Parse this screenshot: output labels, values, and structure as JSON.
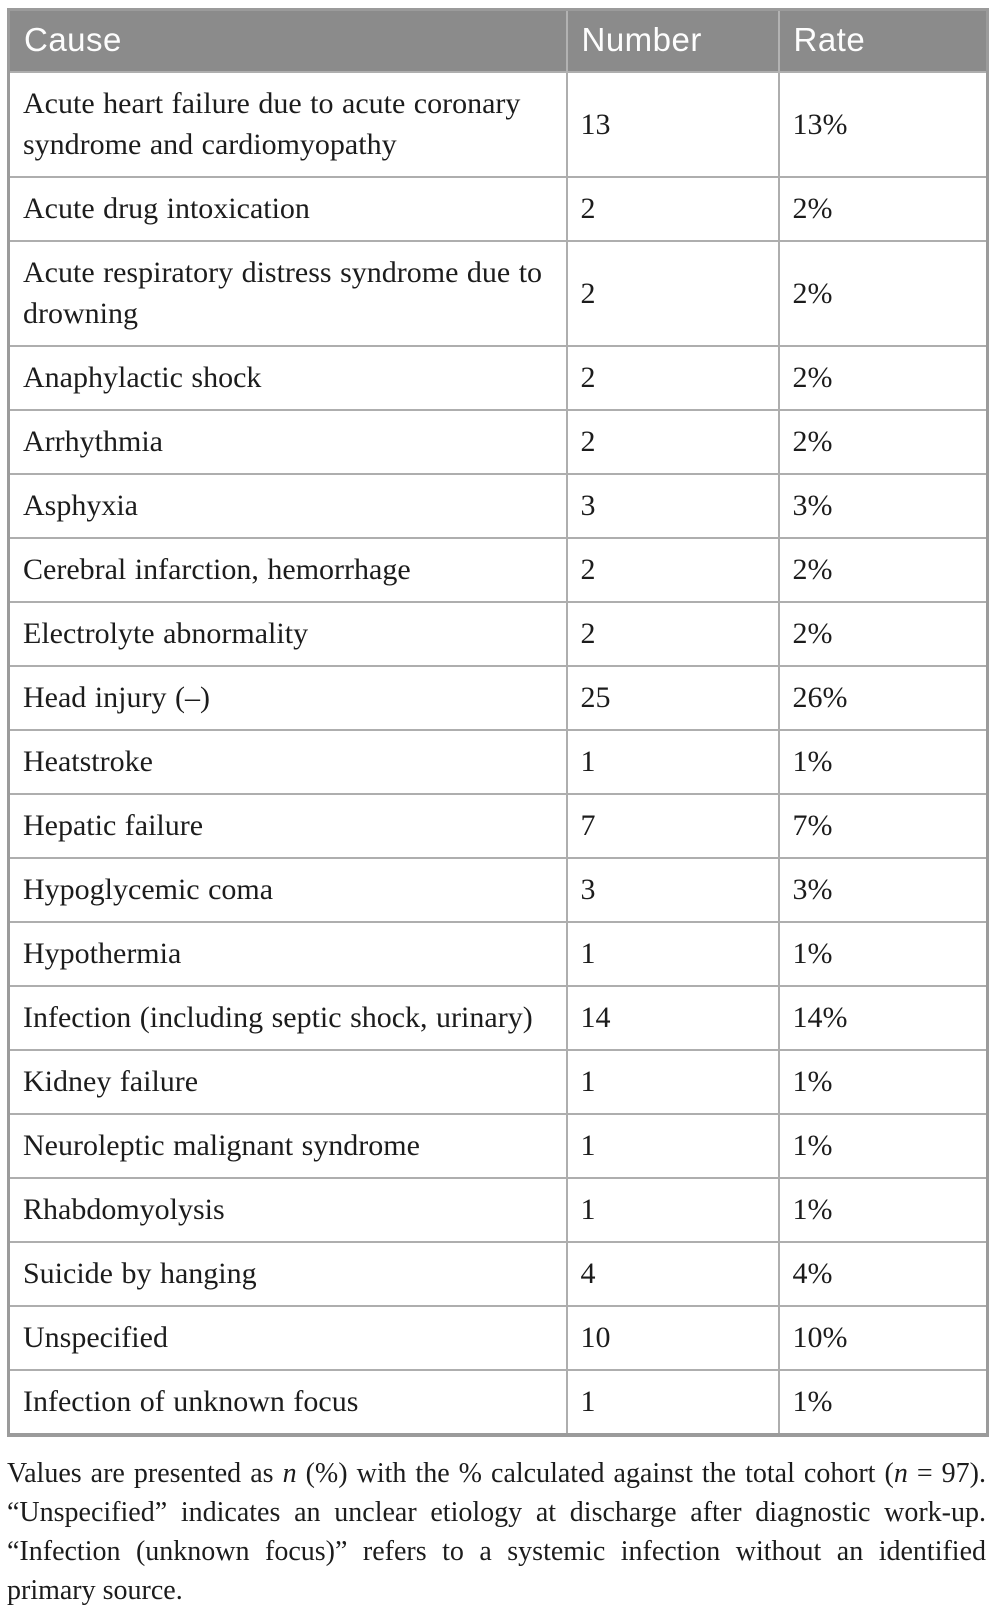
{
  "table": {
    "columns": [
      "Cause",
      "Number",
      "Rate"
    ],
    "rows": [
      {
        "cause": "Acute heart failure due to acute coronary syndrome and cardiomyopathy",
        "number": "13",
        "rate": "13%"
      },
      {
        "cause": "Acute drug intoxication",
        "number": "2",
        "rate": "2%"
      },
      {
        "cause": "Acute respiratory distress syndrome due to drowning",
        "number": "2",
        "rate": "2%"
      },
      {
        "cause": "Anaphylactic shock",
        "number": "2",
        "rate": "2%"
      },
      {
        "cause": "Arrhythmia",
        "number": "2",
        "rate": "2%"
      },
      {
        "cause": "Asphyxia",
        "number": "3",
        "rate": "3%"
      },
      {
        "cause": "Cerebral infarction, hemorrhage",
        "number": "2",
        "rate": "2%"
      },
      {
        "cause": "Electrolyte abnormality",
        "number": "2",
        "rate": "2%"
      },
      {
        "cause": "Head injury (–)",
        "number": "25",
        "rate": "26%"
      },
      {
        "cause": "Heatstroke",
        "number": "1",
        "rate": "1%"
      },
      {
        "cause": "Hepatic failure",
        "number": "7",
        "rate": "7%"
      },
      {
        "cause": "Hypoglycemic coma",
        "number": "3",
        "rate": "3%"
      },
      {
        "cause": "Hypothermia",
        "number": "1",
        "rate": "1%"
      },
      {
        "cause": "Infection (including septic shock, urinary)",
        "number": "14",
        "rate": "14%"
      },
      {
        "cause": "Kidney failure",
        "number": "1",
        "rate": "1%"
      },
      {
        "cause": "Neuroleptic malignant syndrome",
        "number": "1",
        "rate": "1%"
      },
      {
        "cause": "Rhabdomyolysis",
        "number": "1",
        "rate": "1%"
      },
      {
        "cause": "Suicide by hanging",
        "number": "4",
        "rate": "4%"
      },
      {
        "cause": "Unspecified",
        "number": "10",
        "rate": "10%"
      },
      {
        "cause": "Infection of unknown focus",
        "number": "1",
        "rate": "1%"
      }
    ]
  },
  "footnote": {
    "segments": [
      {
        "text": "Values are presented as ",
        "italic": false
      },
      {
        "text": "n",
        "italic": true
      },
      {
        "text": " (%) with the % calculated against the total cohort (",
        "italic": false
      },
      {
        "text": "n",
        "italic": true
      },
      {
        "text": " = 97). “Unspecified” indicates an unclear etiology at discharge after diagnostic work-up. “Infection (unknown focus)” refers to a systemic infection without an identified primary source.",
        "italic": false
      }
    ]
  },
  "colors": {
    "header_background": "#8b8b8b",
    "header_text": "#fdfdfd",
    "grid_line": "#aeaeae",
    "outer_border": "#9b9b9b",
    "body_text": "#1c1c1c"
  }
}
